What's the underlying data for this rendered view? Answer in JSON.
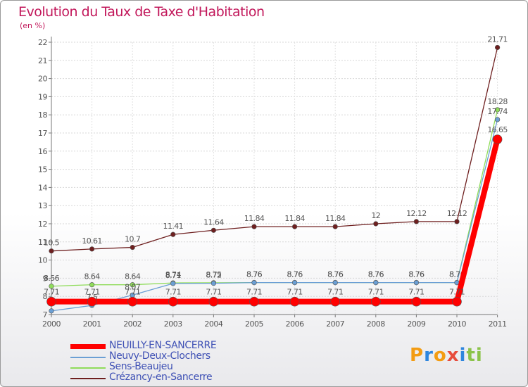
{
  "chart_data": {
    "type": "line",
    "title": "Evolution du Taux de Taxe d'Habitation",
    "ylabel": "(en %)",
    "ylim": [
      7,
      22
    ],
    "yticks": [
      7,
      8,
      9,
      10,
      11,
      12,
      13,
      14,
      15,
      16,
      17,
      18,
      19,
      20,
      21,
      22
    ],
    "x": [
      "2000",
      "2001",
      "2002",
      "2003",
      "2004",
      "2005",
      "2006",
      "2007",
      "2008",
      "2009",
      "2010",
      "2011"
    ],
    "series": [
      {
        "name": "NEUILLY-EN-SANCERRE",
        "color": "#ff0000",
        "values": [
          7.71,
          7.71,
          7.71,
          7.71,
          7.71,
          7.71,
          7.71,
          7.71,
          7.71,
          7.71,
          7.71,
          16.65
        ],
        "labels": [
          "7.71",
          "7.71",
          "7.71",
          "7.71",
          "7.71",
          "7.71",
          "7.71",
          "7.71",
          "7.71",
          "7.71",
          "7.71",
          "16.65"
        ]
      },
      {
        "name": "Neuvy-Deux-Clochers",
        "color": "#6b9fd4",
        "values": [
          7.2,
          7.5,
          8.07,
          8.71,
          8.72,
          8.76,
          8.76,
          8.76,
          8.76,
          8.76,
          8.76,
          17.74
        ],
        "labels": [
          "",
          "7.5",
          "8.07",
          "8.71",
          "8.72",
          "8.76",
          "8.76",
          "8.76",
          "8.76",
          "8.76",
          "8.76",
          "17.74"
        ]
      },
      {
        "name": "Sens-Beaujeu",
        "color": "#8fdc5a",
        "values": [
          8.56,
          8.64,
          8.64,
          8.74,
          8.75,
          8.76,
          8.76,
          8.76,
          8.76,
          8.76,
          8.76,
          18.28
        ],
        "labels": [
          "8.56",
          "8.64",
          "8.64",
          "8.74",
          "8.75",
          "8.76",
          "8.76",
          "8.76",
          "8.76",
          "8.76",
          "8.76",
          "18.28"
        ]
      },
      {
        "name": "Crézancy-en-Sancerre",
        "color": "#6e1f1f",
        "values": [
          10.5,
          10.61,
          10.7,
          11.41,
          11.64,
          11.84,
          11.84,
          11.84,
          12,
          12.12,
          12.12,
          21.71
        ],
        "labels": [
          "10.5",
          "10.61",
          "10.7",
          "11.41",
          "11.64",
          "11.84",
          "11.84",
          "11.84",
          "12",
          "12.12",
          "12.12",
          "21.71"
        ]
      }
    ]
  },
  "header": {
    "title": "Evolution du Taux de Taxe d'Habitation",
    "subtitle": "(en %)"
  },
  "legend": {
    "items": [
      "NEUILLY-EN-SANCERRE",
      "Neuvy-Deux-Clochers",
      "Sens-Beaujeu",
      "Crézancy-en-Sancerre"
    ]
  },
  "logo": {
    "text": [
      "P",
      "r",
      "o",
      "x",
      "i",
      "t",
      "i"
    ],
    "colors": [
      "#f39c12",
      "#2e86de",
      "#f39c12",
      "#e74c3c",
      "#2e86de",
      "#8bc34a",
      "#8bc34a"
    ]
  }
}
